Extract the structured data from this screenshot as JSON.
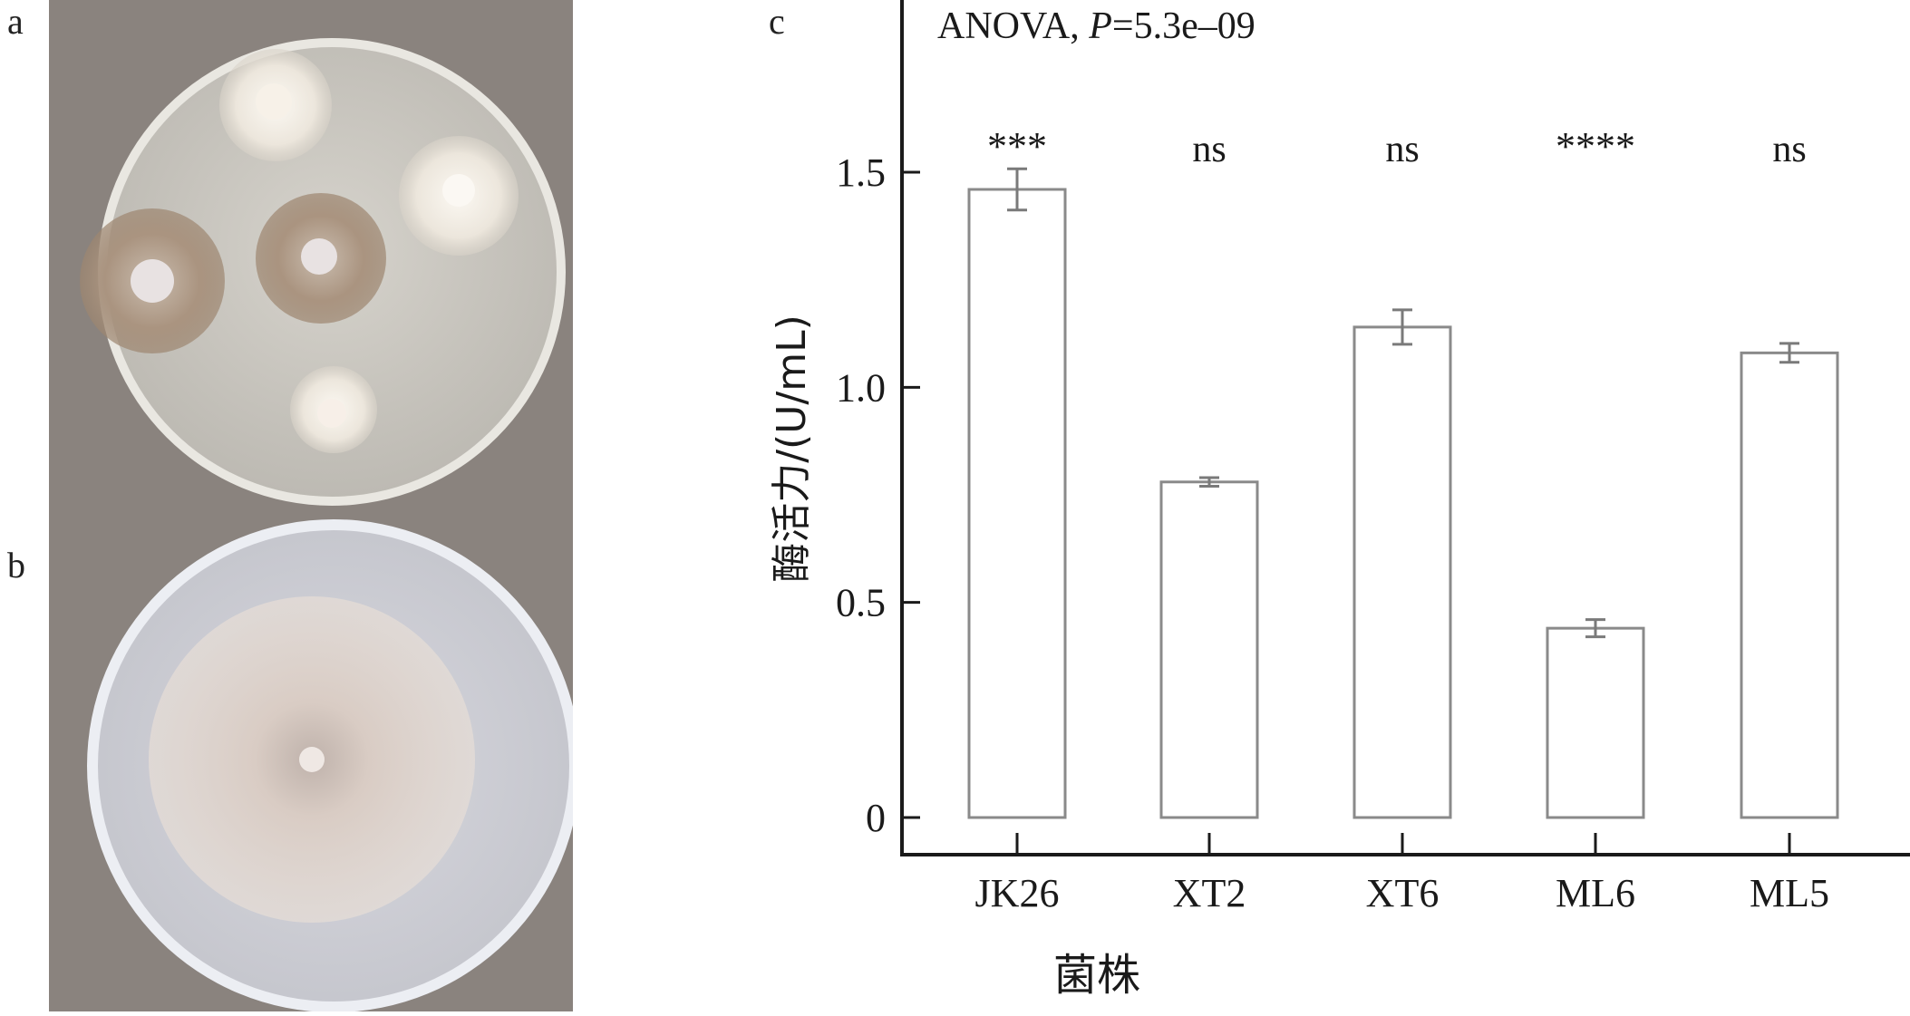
{
  "panels": {
    "a": "a",
    "b": "b",
    "c": "c"
  },
  "photos": {
    "plate_a": {
      "colony_colors": [
        "#e9e3d8",
        "#b5a08a",
        "#ede7de"
      ]
    },
    "plate_b": {
      "colony_colors": [
        "#cfc3bc"
      ]
    }
  },
  "chart_data": {
    "type": "bar",
    "title": "ANOVA, P=5.3e–09",
    "title_prefix": "ANOVA, ",
    "title_p": "P",
    "title_suffix": "=5.3e–09",
    "xlabel": "菌株",
    "ylabel": "酶活力/(U/mL)",
    "categories": [
      "JK26",
      "XT2",
      "XT6",
      "ML6",
      "ML5"
    ],
    "values": [
      1.46,
      0.78,
      1.14,
      0.44,
      1.08
    ],
    "errors": [
      0.048,
      0.01,
      0.04,
      0.02,
      0.022
    ],
    "significance": [
      "***",
      "ns",
      "ns",
      "****",
      "ns"
    ],
    "ylim": [
      0,
      1.8
    ],
    "yticks": [
      0,
      0.5,
      1.0,
      1.5
    ],
    "ytick_labels": [
      "0",
      "0.5",
      "1.0",
      "1.5"
    ],
    "grid": false,
    "colors": {
      "bar_fill": "#ffffff",
      "bar_stroke": "#8a8a8a",
      "axis": "#1a1a1a",
      "error": "#7a7a7a"
    }
  }
}
